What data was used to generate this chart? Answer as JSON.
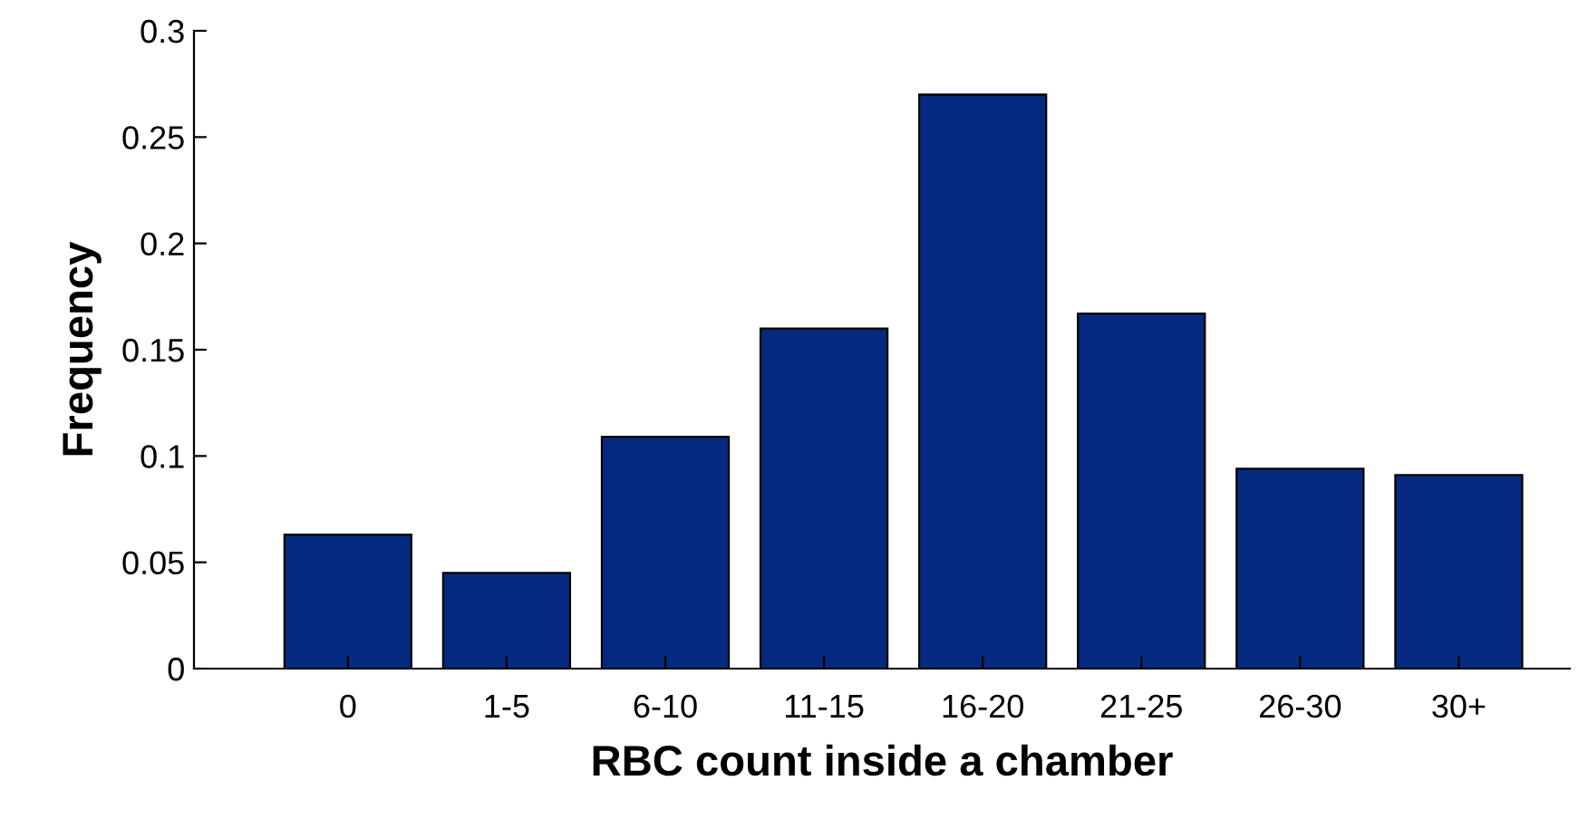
{
  "chart_data": {
    "type": "bar",
    "xlabel": "RBC count inside a chamber",
    "ylabel": "Frequency",
    "categories": [
      "0",
      "1-5",
      "6-10",
      "11-15",
      "16-20",
      "21-25",
      "26-30",
      "30+"
    ],
    "values": [
      0.063,
      0.045,
      0.109,
      0.16,
      0.27,
      0.167,
      0.094,
      0.091
    ],
    "color": "#052a80",
    "ylim": [
      0,
      0.3
    ],
    "yticks": [
      {
        "value": 0,
        "label": "0"
      },
      0.05,
      0.1,
      0.15,
      0.2,
      0.25,
      0.3
    ],
    "grid": false,
    "legend": false
  }
}
